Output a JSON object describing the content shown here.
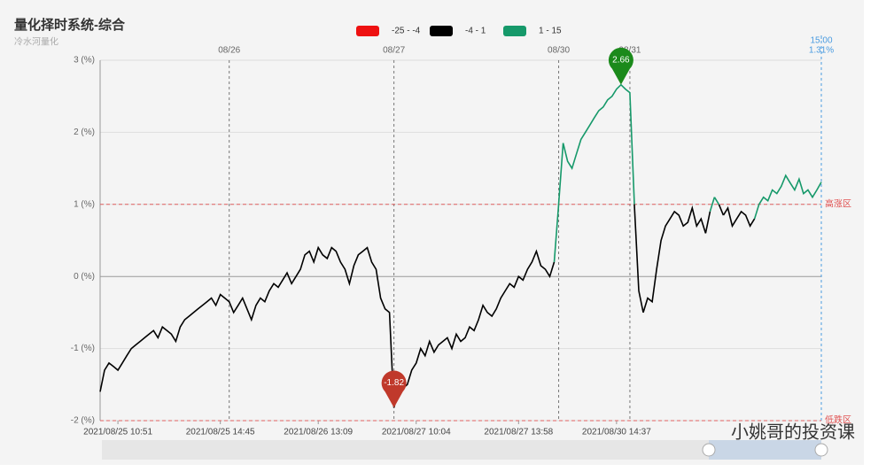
{
  "chart_data": {
    "type": "line",
    "title": "量化择时系统-综合",
    "subtitle": "冷水河量化",
    "watermark": "小姚哥的投资课",
    "visual_map": [
      {
        "min": -25,
        "max": -4,
        "label": "-25 - -4",
        "color": "#ee1111"
      },
      {
        "min": -4,
        "max": 1,
        "label": "-4 - 1",
        "color": "#000000"
      },
      {
        "min": 1,
        "max": 15,
        "label": "1 - 15",
        "color": "#16996a"
      }
    ],
    "values": [
      -1.6,
      -1.3,
      -1.2,
      -1.25,
      -1.3,
      -1.2,
      -1.1,
      -1.0,
      -0.95,
      -0.9,
      -0.85,
      -0.8,
      -0.75,
      -0.85,
      -0.7,
      -0.75,
      -0.8,
      -0.9,
      -0.7,
      -0.6,
      -0.55,
      -0.5,
      -0.45,
      -0.4,
      -0.35,
      -0.3,
      -0.4,
      -0.25,
      -0.3,
      -0.35,
      -0.5,
      -0.4,
      -0.3,
      -0.45,
      -0.6,
      -0.4,
      -0.3,
      -0.35,
      -0.2,
      -0.1,
      -0.15,
      -0.05,
      0.05,
      -0.1,
      0.0,
      0.1,
      0.3,
      0.35,
      0.2,
      0.4,
      0.3,
      0.25,
      0.4,
      0.35,
      0.2,
      0.1,
      -0.1,
      0.15,
      0.3,
      0.35,
      0.4,
      0.2,
      0.1,
      -0.3,
      -0.45,
      -0.5,
      -1.82,
      -1.6,
      -1.55,
      -1.5,
      -1.3,
      -1.2,
      -1.0,
      -1.1,
      -0.9,
      -1.05,
      -0.95,
      -0.9,
      -0.85,
      -1.0,
      -0.8,
      -0.9,
      -0.85,
      -0.7,
      -0.75,
      -0.6,
      -0.4,
      -0.5,
      -0.55,
      -0.45,
      -0.3,
      -0.2,
      -0.1,
      -0.15,
      0.0,
      -0.05,
      0.1,
      0.2,
      0.35,
      0.15,
      0.1,
      0.0,
      0.2,
      1.0,
      1.85,
      1.6,
      1.5,
      1.7,
      1.9,
      2.0,
      2.1,
      2.2,
      2.3,
      2.35,
      2.45,
      2.5,
      2.6,
      2.66,
      2.6,
      2.55,
      1.0,
      -0.2,
      -0.5,
      -0.3,
      -0.35,
      0.1,
      0.5,
      0.7,
      0.8,
      0.9,
      0.85,
      0.7,
      0.75,
      0.95,
      0.7,
      0.8,
      0.6,
      0.9,
      1.1,
      1.0,
      0.85,
      0.95,
      0.7,
      0.8,
      0.9,
      0.85,
      0.7,
      0.8,
      1.0,
      1.1,
      1.05,
      1.2,
      1.15,
      1.25,
      1.4,
      1.3,
      1.2,
      1.35,
      1.15,
      1.2,
      1.1,
      1.2,
      1.31
    ],
    "xlim": [
      0,
      162
    ],
    "xticks": [
      {
        "value": 4,
        "label": "2021/08/25 10:51"
      },
      {
        "value": 27,
        "label": "2021/08/25 14:45"
      },
      {
        "value": 49,
        "label": "2021/08/26 13:09"
      },
      {
        "value": 71,
        "label": "2021/08/27 10:04"
      },
      {
        "value": 94,
        "label": "2021/08/27 13:58"
      },
      {
        "value": 116,
        "label": "2021/08/30 14:37"
      }
    ],
    "date_lines": [
      {
        "value": 29,
        "label": "08/26"
      },
      {
        "value": 66,
        "label": "08/27"
      },
      {
        "value": 103,
        "label": "08/30"
      },
      {
        "value": 119,
        "label": "08/31"
      }
    ],
    "end_time": "15:00",
    "end_value_label": "1.31%",
    "ylim": [
      -2,
      3
    ],
    "yticks": [
      {
        "value": -2,
        "label": "-2 (%)"
      },
      {
        "value": -1,
        "label": "-1 (%)"
      },
      {
        "value": 0,
        "label": "0 (%)"
      },
      {
        "value": 1,
        "label": "1 (%)"
      },
      {
        "value": 2,
        "label": "2 (%)"
      },
      {
        "value": 3,
        "label": "3 (%)"
      }
    ],
    "mark_lines": [
      {
        "value": 1,
        "label": "高涨区"
      },
      {
        "value": -2,
        "label": "低跌区"
      }
    ],
    "grid": true
  }
}
